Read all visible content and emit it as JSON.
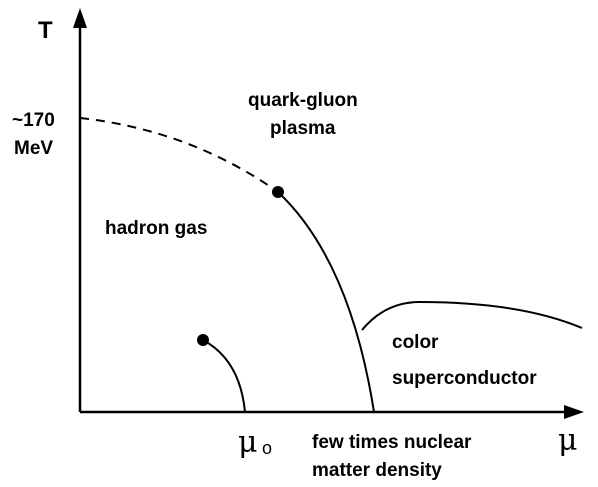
{
  "axes": {
    "y_label": "T",
    "x_label": "μ"
  },
  "temperature_mark": {
    "value": "~170",
    "unit": "MeV"
  },
  "regions": {
    "plasma": [
      "quark-gluon",
      "plasma"
    ],
    "hadron": "hadron gas",
    "superconductor": [
      "color",
      "superconductor"
    ]
  },
  "mu0": {
    "symbol": "μ",
    "subscript": "o"
  },
  "density_note": [
    "few times nuclear",
    "matter density"
  ]
}
